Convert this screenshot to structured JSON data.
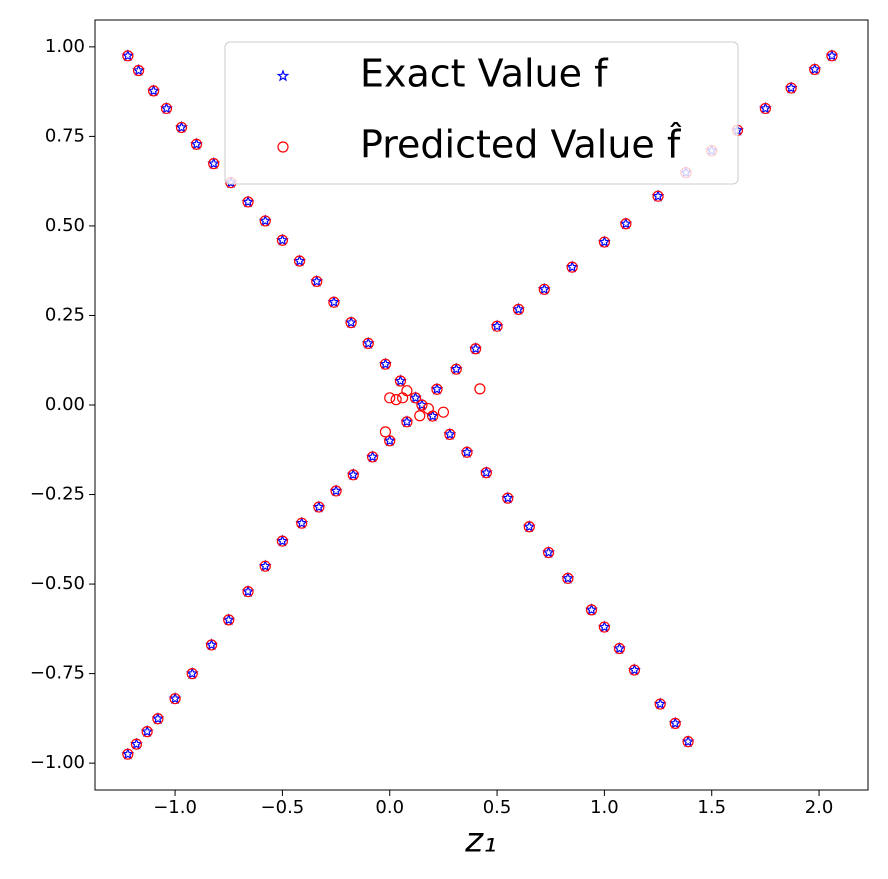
{
  "chart_data": {
    "type": "scatter",
    "x_label": "z₁",
    "xlim": [
      -1.373,
      2.228
    ],
    "ylim": [
      -1.075,
      1.075
    ],
    "xticks": [
      {
        "value": -1.0,
        "label": "−1.0"
      },
      {
        "value": -0.5,
        "label": "−0.5"
      },
      {
        "value": 0,
        "label": "0.0"
      },
      {
        "value": 0.5,
        "label": "0.5"
      },
      {
        "value": 1.0,
        "label": "1.0"
      },
      {
        "value": 1.5,
        "label": "1.5"
      },
      {
        "value": 2.0,
        "label": "2.0"
      }
    ],
    "yticks": [
      {
        "value": -1.0,
        "label": "−1.00"
      },
      {
        "value": -0.75,
        "label": "−0.75"
      },
      {
        "value": -0.5,
        "label": "−0.50"
      },
      {
        "value": -0.25,
        "label": "−0.25"
      },
      {
        "value": 0,
        "label": "0.00"
      },
      {
        "value": 0.25,
        "label": "0.25"
      },
      {
        "value": 0.5,
        "label": "0.50"
      },
      {
        "value": 0.75,
        "label": "0.75"
      },
      {
        "value": 1.0,
        "label": "1.00"
      }
    ],
    "legend": "upper center",
    "series": [
      {
        "name": "Exact Value f",
        "color": "#0000ff",
        "marker": "star",
        "x": [
          -1.22,
          -1.18,
          -1.13,
          -1.08,
          -1.0,
          -0.92,
          -0.83,
          -0.75,
          -0.66,
          -0.58,
          -0.5,
          -0.41,
          -0.33,
          -0.25,
          -0.17,
          -0.08,
          0.0,
          0.08,
          0.15,
          0.22,
          0.31,
          0.4,
          0.5,
          0.6,
          0.72,
          0.85,
          1.0,
          1.1,
          1.25,
          1.38,
          1.5,
          1.62,
          1.75,
          1.87,
          1.98,
          2.06,
          -1.22,
          -1.17,
          -1.1,
          -1.04,
          -0.97,
          -0.9,
          -0.82,
          -0.74,
          -0.66,
          -0.58,
          -0.5,
          -0.42,
          -0.34,
          -0.26,
          -0.18,
          -0.1,
          -0.02,
          0.05,
          0.12,
          0.2,
          0.28,
          0.36,
          0.45,
          0.55,
          0.65,
          0.74,
          0.83,
          0.94,
          1.0,
          1.07,
          1.14,
          1.26,
          1.33,
          1.39
        ],
        "values": [
          -0.975,
          -0.947,
          -0.912,
          -0.876,
          -0.82,
          -0.75,
          -0.67,
          -0.6,
          -0.521,
          -0.45,
          -0.38,
          -0.33,
          -0.285,
          -0.24,
          -0.195,
          -0.145,
          -0.1,
          -0.047,
          0.0,
          0.044,
          0.1,
          0.157,
          0.22,
          0.267,
          0.323,
          0.385,
          0.455,
          0.506,
          0.583,
          0.649,
          0.71,
          0.767,
          0.828,
          0.885,
          0.937,
          0.975,
          0.975,
          0.934,
          0.877,
          0.828,
          0.775,
          0.728,
          0.674,
          0.621,
          0.567,
          0.514,
          0.46,
          0.402,
          0.345,
          0.287,
          0.23,
          0.172,
          0.114,
          0.067,
          0.02,
          -0.031,
          -0.082,
          -0.132,
          -0.189,
          -0.26,
          -0.34,
          -0.412,
          -0.484,
          -0.572,
          -0.62,
          -0.68,
          -0.74,
          -0.835,
          -0.889,
          -0.94
        ]
      },
      {
        "name": "Predicted Value f̂",
        "color": "#ff0000",
        "marker": "circle",
        "x": [
          -1.22,
          -1.18,
          -1.13,
          -1.08,
          -1.0,
          -0.92,
          -0.83,
          -0.75,
          -0.66,
          -0.58,
          -0.5,
          -0.41,
          -0.33,
          -0.25,
          -0.17,
          -0.08,
          0.0,
          0.08,
          0.15,
          0.22,
          0.31,
          0.4,
          0.5,
          0.6,
          0.72,
          0.85,
          1.0,
          1.1,
          1.25,
          1.38,
          1.5,
          1.62,
          1.75,
          1.87,
          1.98,
          2.06,
          -1.22,
          -1.17,
          -1.1,
          -1.04,
          -0.97,
          -0.9,
          -0.82,
          -0.74,
          -0.66,
          -0.58,
          -0.5,
          -0.42,
          -0.34,
          -0.26,
          -0.18,
          -0.1,
          -0.02,
          0.05,
          0.12,
          0.2,
          0.28,
          0.36,
          0.45,
          0.55,
          0.65,
          0.74,
          0.83,
          0.94,
          1.0,
          1.07,
          1.14,
          1.26,
          1.33,
          1.39,
          0.42,
          0.0,
          0.03,
          0.06,
          -0.02,
          0.25,
          0.08,
          0.18,
          0.14
        ],
        "values": [
          -0.975,
          -0.947,
          -0.912,
          -0.876,
          -0.82,
          -0.75,
          -0.67,
          -0.6,
          -0.521,
          -0.45,
          -0.38,
          -0.33,
          -0.285,
          -0.24,
          -0.195,
          -0.145,
          -0.1,
          -0.047,
          0.0,
          0.044,
          0.1,
          0.157,
          0.22,
          0.267,
          0.323,
          0.385,
          0.455,
          0.506,
          0.583,
          0.649,
          0.71,
          0.767,
          0.828,
          0.885,
          0.937,
          0.975,
          0.975,
          0.934,
          0.877,
          0.828,
          0.775,
          0.728,
          0.674,
          0.621,
          0.567,
          0.514,
          0.46,
          0.402,
          0.345,
          0.287,
          0.23,
          0.172,
          0.114,
          0.067,
          0.02,
          -0.031,
          -0.082,
          -0.132,
          -0.189,
          -0.26,
          -0.34,
          -0.412,
          -0.484,
          -0.572,
          -0.62,
          -0.68,
          -0.74,
          -0.835,
          -0.889,
          -0.94,
          0.045,
          0.02,
          0.015,
          0.02,
          -0.075,
          -0.02,
          0.04,
          -0.01,
          -0.03
        ]
      }
    ]
  }
}
